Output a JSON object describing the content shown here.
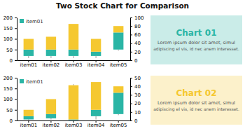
{
  "chart_data": [
    {
      "type": "bar",
      "title": "Two Stock Chart for Comparison",
      "categories": [
        "item01",
        "item02",
        "item03",
        "item04",
        "item05"
      ],
      "stacked": true,
      "series": [
        {
          "name": "item01",
          "color": "#2ab5a5",
          "values": [
            30,
            30,
            30,
            20,
            80
          ],
          "bottom": [
            20,
            20,
            20,
            20,
            50
          ]
        },
        {
          "color": "#f5c830",
          "values": [
            50,
            60,
            120,
            60,
            30
          ]
        }
      ],
      "whisker_low": [
        10,
        10,
        10,
        10,
        45
      ],
      "whisker_high": [
        100,
        110,
        170,
        100,
        160
      ],
      "ylim": [
        0,
        200
      ],
      "yticks": [
        0,
        50,
        100,
        150,
        200
      ],
      "y2lim": [
        0,
        100
      ],
      "y2ticks": [
        0,
        20,
        40,
        60,
        80,
        100
      ],
      "legend": "upper left",
      "grid": false,
      "annotations": [
        "Chart 01",
        "Lorem ipsum dolor sit amet, simul",
        "adipiscing el vis, id nec anem interesset."
      ]
    },
    {
      "type": "bar",
      "categories": [
        "item01",
        "item02",
        "item03",
        "item04",
        "item05"
      ],
      "stacked": true,
      "series": [
        {
          "name": "item01",
          "color": "#2ab5a5",
          "values": [
            15,
            20,
            3,
            30,
            100
          ],
          "bottom": [
            5,
            10,
            2,
            20,
            30
          ]
        },
        {
          "color": "#f5c830",
          "values": [
            30,
            70,
            160,
            130,
            30
          ]
        }
      ],
      "whisker_low": [
        0,
        5,
        0,
        5,
        25
      ],
      "whisker_high": [
        50,
        100,
        170,
        180,
        160
      ],
      "ylim": [
        0,
        200
      ],
      "yticks": [
        0,
        50,
        100,
        150,
        200
      ],
      "y2lim": [
        0,
        50
      ],
      "y2ticks": [
        0,
        10,
        20,
        30,
        40,
        50
      ],
      "legend": "upper left",
      "grid": false,
      "annotations": [
        "Chart 02",
        "Lorem ipsum dolor sit amet, simul",
        "adipiscing el vis, id nec anem interesset."
      ]
    }
  ]
}
